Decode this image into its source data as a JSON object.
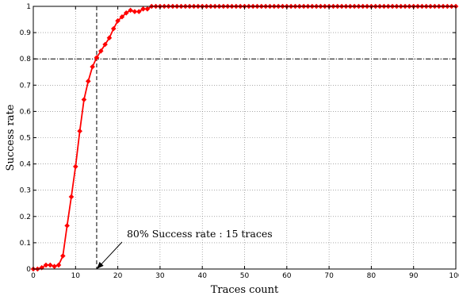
{
  "chart_data": {
    "type": "line",
    "xlabel": "Traces count",
    "ylabel": "Success rate",
    "xlim": [
      0,
      100
    ],
    "ylim": [
      0,
      1
    ],
    "xticks": [
      0,
      10,
      20,
      30,
      40,
      50,
      60,
      70,
      80,
      90,
      100
    ],
    "yticks": [
      0,
      0.1,
      0.2,
      0.3,
      0.4,
      0.5,
      0.6,
      0.7,
      0.8,
      0.9,
      1
    ],
    "grid": true,
    "series_color": "#ff0000",
    "marker": "diamond",
    "x": [
      0,
      1,
      2,
      3,
      4,
      5,
      6,
      7,
      8,
      9,
      10,
      11,
      12,
      13,
      14,
      15,
      16,
      17,
      18,
      19,
      20,
      21,
      22,
      23,
      24,
      25,
      26,
      27,
      28,
      29,
      30,
      31,
      32,
      33,
      34,
      35,
      36,
      37,
      38,
      39,
      40,
      41,
      42,
      43,
      44,
      45,
      46,
      47,
      48,
      49,
      50,
      51,
      52,
      53,
      54,
      55,
      56,
      57,
      58,
      59,
      60,
      61,
      62,
      63,
      64,
      65,
      66,
      67,
      68,
      69,
      70,
      71,
      72,
      73,
      74,
      75,
      76,
      77,
      78,
      79,
      80,
      81,
      82,
      83,
      84,
      85,
      86,
      87,
      88,
      89,
      90,
      91,
      92,
      93,
      94,
      95,
      96,
      97,
      98,
      99,
      100
    ],
    "y": [
      0,
      0,
      0.005,
      0.015,
      0.015,
      0.01,
      0.015,
      0.05,
      0.165,
      0.275,
      0.39,
      0.525,
      0.645,
      0.715,
      0.77,
      0.805,
      0.83,
      0.855,
      0.88,
      0.915,
      0.945,
      0.96,
      0.975,
      0.985,
      0.98,
      0.98,
      0.99,
      0.99,
      1,
      1,
      1,
      1,
      1,
      1,
      1,
      1,
      1,
      1,
      1,
      1,
      1,
      1,
      1,
      1,
      1,
      1,
      1,
      1,
      1,
      1,
      1,
      1,
      1,
      1,
      1,
      1,
      1,
      1,
      1,
      1,
      1,
      1,
      1,
      1,
      1,
      1,
      1,
      1,
      1,
      1,
      1,
      1,
      1,
      1,
      1,
      1,
      1,
      1,
      1,
      1,
      1,
      1,
      1,
      1,
      1,
      1,
      1,
      1,
      1,
      1,
      1,
      1,
      1,
      1,
      1,
      1,
      1,
      1,
      1,
      1,
      1
    ],
    "reference_lines": {
      "x": 15,
      "y": 0.8
    },
    "annotation": {
      "text": "80% Success rate : 15 traces",
      "point": [
        15,
        0
      ]
    }
  }
}
